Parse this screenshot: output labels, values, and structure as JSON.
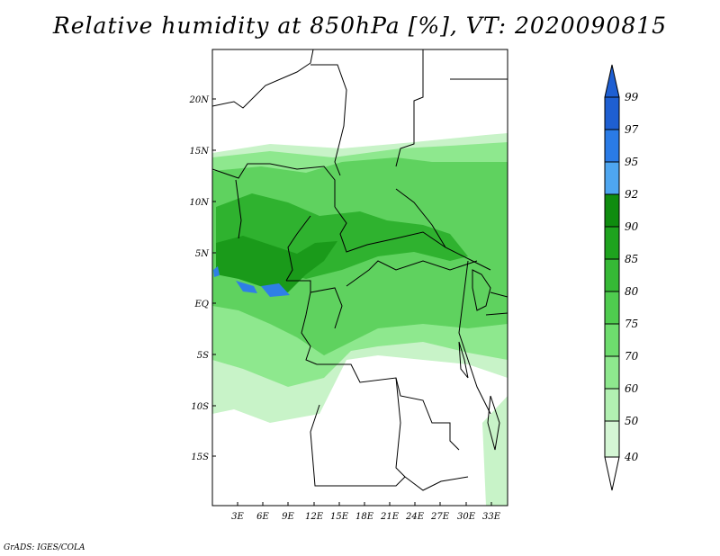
{
  "title": "Relative humidity at 850hPa [%], VT: 2020090815",
  "credit": "GrADS: IGES/COLA",
  "lat_labels": [
    "20N",
    "15N",
    "10N",
    "5N",
    "EQ",
    "5S",
    "10S",
    "15S"
  ],
  "lon_labels": [
    "3E",
    "6E",
    "9E",
    "12E",
    "15E",
    "18E",
    "21E",
    "24E",
    "27E",
    "30E",
    "33E"
  ],
  "colorbar": {
    "levels": [
      "99",
      "97",
      "95",
      "92",
      "90",
      "85",
      "80",
      "75",
      "70",
      "60",
      "50",
      "40"
    ],
    "colors": [
      "#1e5fd2",
      "#2a7be6",
      "#4ea6f0",
      "#0f8c0f",
      "#1ea31e",
      "#36b936",
      "#4fcc4f",
      "#6edd6e",
      "#8ee88e",
      "#b2f0b2",
      "#d4f6d4",
      "#eefcee"
    ]
  },
  "field_colors": {
    "light": "#c8f3c8",
    "mid": "#8ee88e",
    "green": "#5fd25f",
    "dark": "#2fb22f",
    "darker": "#1a9a1a",
    "blue": "#2f7fe6"
  }
}
